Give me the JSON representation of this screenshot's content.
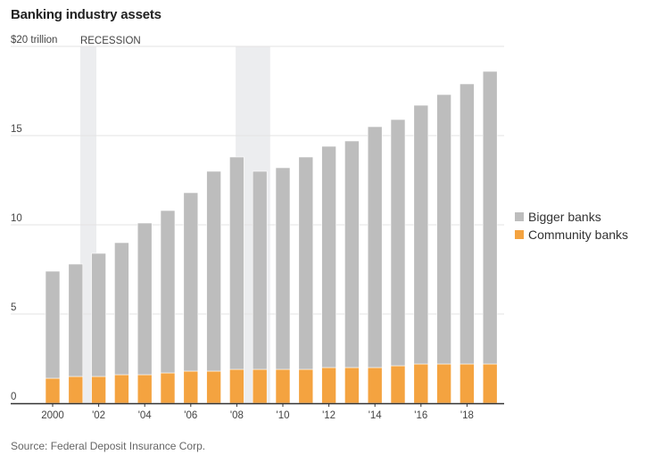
{
  "title": "Banking industry assets",
  "source": "Source: Federal Deposit Insurance Corp.",
  "colors": {
    "community": "#f4a340",
    "bigger": "#bdbdbd",
    "recession": "#ecedef",
    "grid": "#e3e3e3",
    "axis": "#333333"
  },
  "chart_data": {
    "type": "bar",
    "stacked": true,
    "title": "Banking industry assets",
    "xlabel": "",
    "ylabel": "",
    "y_unit_label": "$20 trillion",
    "ylim": [
      0,
      20
    ],
    "yticks": [
      0,
      5,
      10,
      15,
      20
    ],
    "ytick_labels": [
      "0",
      "5",
      "10",
      "15",
      "$20 trillion"
    ],
    "grid": true,
    "legend_position": "right",
    "categories": [
      2000,
      2001,
      2002,
      2003,
      2004,
      2005,
      2006,
      2007,
      2008,
      2009,
      2010,
      2011,
      2012,
      2013,
      2014,
      2015,
      2016,
      2017,
      2018,
      2019
    ],
    "xtick_labels": [
      {
        "year": 2000,
        "label": "2000"
      },
      {
        "year": 2002,
        "label": "'02"
      },
      {
        "year": 2004,
        "label": "'04"
      },
      {
        "year": 2006,
        "label": "'06"
      },
      {
        "year": 2008,
        "label": "'08"
      },
      {
        "year": 2010,
        "label": "'10"
      },
      {
        "year": 2012,
        "label": "'12"
      },
      {
        "year": 2014,
        "label": "'14"
      },
      {
        "year": 2016,
        "label": "'16"
      },
      {
        "year": 2018,
        "label": "'18"
      }
    ],
    "series": [
      {
        "name": "Community banks",
        "key": "community",
        "values": [
          1.4,
          1.5,
          1.5,
          1.6,
          1.6,
          1.7,
          1.8,
          1.8,
          1.9,
          1.9,
          1.9,
          1.9,
          2.0,
          2.0,
          2.0,
          2.1,
          2.2,
          2.2,
          2.2,
          2.2
        ]
      },
      {
        "name": "Bigger banks",
        "key": "bigger",
        "values": [
          6.0,
          6.3,
          6.9,
          7.4,
          8.5,
          9.1,
          10.0,
          11.2,
          11.9,
          11.1,
          11.3,
          11.9,
          12.4,
          12.7,
          13.5,
          13.8,
          14.5,
          15.1,
          15.7,
          16.4
        ]
      }
    ],
    "totals": [
      7.4,
      7.8,
      8.4,
      9.0,
      10.1,
      10.8,
      11.8,
      13.0,
      13.8,
      13.0,
      13.2,
      13.8,
      14.4,
      14.7,
      15.5,
      15.9,
      16.7,
      17.3,
      17.9,
      18.6
    ],
    "annotations": [
      {
        "label": "RECESSION",
        "start": 2001.2,
        "end": 2001.9
      },
      {
        "label": "",
        "start": 2007.95,
        "end": 2009.45
      }
    ]
  },
  "legend": [
    {
      "label": "Bigger banks",
      "key": "bigger"
    },
    {
      "label": "Community banks",
      "key": "community"
    }
  ]
}
